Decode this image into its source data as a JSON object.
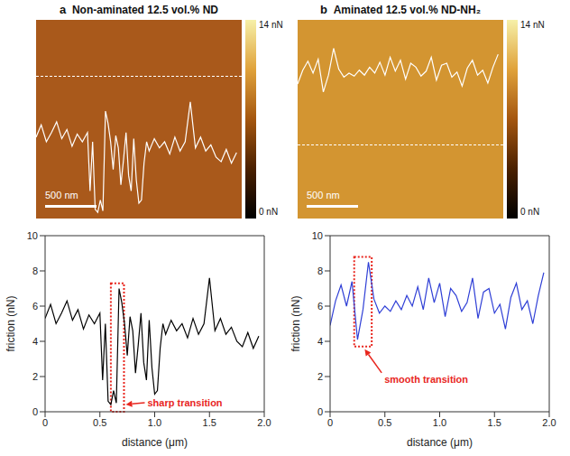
{
  "chart_data": [
    {
      "type": "heatmap",
      "panel": "a",
      "title": "Non-aminated 12.5 vol.% ND",
      "scale_bar": "500 nm",
      "colorbar": {
        "range": [
          0,
          14
        ],
        "ticks": [
          {
            "value": 14,
            "label": "14 nN"
          },
          {
            "value": 0,
            "label": "0 nN"
          }
        ]
      }
    },
    {
      "type": "heatmap",
      "panel": "b",
      "title": "Aminated 12.5 vol.% ND-NH₂",
      "scale_bar": "500 nm",
      "colorbar": {
        "range": [
          0,
          14
        ],
        "ticks": [
          {
            "value": 14,
            "label": "14 nN"
          },
          {
            "value": 0,
            "label": "0 nN"
          }
        ]
      }
    },
    {
      "type": "line",
      "color": "#000000",
      "x_label": "distance (μm)",
      "y_label": "friction (nN)",
      "x": [
        0,
        0.05,
        0.1,
        0.15,
        0.2,
        0.25,
        0.3,
        0.35,
        0.4,
        0.45,
        0.5,
        0.525,
        0.55,
        0.575,
        0.6,
        0.625,
        0.65,
        0.675,
        0.7,
        0.725,
        0.75,
        0.775,
        0.8,
        0.825,
        0.85,
        0.875,
        0.9,
        0.925,
        0.95,
        0.975,
        1.0,
        1.025,
        1.05,
        1.075,
        1.1,
        1.15,
        1.2,
        1.25,
        1.3,
        1.35,
        1.4,
        1.45,
        1.5,
        1.55,
        1.6,
        1.65,
        1.7,
        1.75,
        1.8,
        1.85,
        1.9,
        1.95
      ],
      "values": [
        5.3,
        6.1,
        5.0,
        5.6,
        6.3,
        5.2,
        5.8,
        4.7,
        5.5,
        5.0,
        5.6,
        1.8,
        5.0,
        0.6,
        0.4,
        1.2,
        0.5,
        7.0,
        6.2,
        5.0,
        3.2,
        5.4,
        4.6,
        2.2,
        3.8,
        5.6,
        2.8,
        1.8,
        5.2,
        2.5,
        1.0,
        1.2,
        3.6,
        5.0,
        4.4,
        5.2,
        4.6,
        5.0,
        4.2,
        5.3,
        4.4,
        5.0,
        7.6,
        4.6,
        5.3,
        4.4,
        4.8,
        4.0,
        3.7,
        4.5,
        3.6,
        4.3
      ],
      "xlim": [
        0,
        2
      ],
      "xticks": [
        0,
        0.5,
        {
          "value": 1,
          "label": "1.0"
        },
        1.5,
        {
          "value": 2,
          "label": "2.0"
        }
      ],
      "ylim": [
        0,
        10
      ],
      "yticks": [
        0,
        2,
        4,
        6,
        8,
        10
      ],
      "annotation": {
        "text": "sharp transition",
        "x": [
          0.6,
          0.72
        ],
        "y": [
          0,
          7.3
        ],
        "color": "#e8261e"
      }
    },
    {
      "type": "line",
      "color": "#2f3fd6",
      "x_label": "distance (μm)",
      "y_label": "friction (nN)",
      "x": [
        0,
        0.05,
        0.1,
        0.15,
        0.2,
        0.25,
        0.3,
        0.35,
        0.4,
        0.45,
        0.5,
        0.55,
        0.6,
        0.65,
        0.7,
        0.75,
        0.8,
        0.85,
        0.9,
        0.95,
        1.0,
        1.05,
        1.1,
        1.15,
        1.2,
        1.25,
        1.3,
        1.35,
        1.4,
        1.45,
        1.5,
        1.55,
        1.6,
        1.65,
        1.7,
        1.75,
        1.8,
        1.85,
        1.9,
        1.95
      ],
      "values": [
        4.9,
        6.3,
        7.2,
        6.0,
        7.4,
        4.1,
        5.8,
        8.5,
        6.4,
        5.6,
        6.0,
        5.7,
        6.3,
        5.8,
        6.6,
        6.0,
        7.1,
        5.8,
        7.6,
        6.2,
        7.3,
        5.4,
        7.0,
        6.6,
        5.7,
        6.2,
        7.6,
        5.3,
        6.8,
        7.0,
        5.6,
        6.1,
        4.7,
        6.5,
        7.3,
        5.8,
        6.3,
        5.0,
        6.6,
        7.9
      ],
      "xlim": [
        0,
        2
      ],
      "xticks": [
        0,
        0.5,
        {
          "value": 1,
          "label": "1.0"
        },
        1.5,
        {
          "value": 2,
          "label": "2.0"
        }
      ],
      "ylim": [
        0,
        10
      ],
      "yticks": [
        0,
        2,
        4,
        6,
        8,
        10
      ],
      "annotation": {
        "text": "smooth transition",
        "x": [
          0.22,
          0.38
        ],
        "y": [
          3.7,
          8.8
        ],
        "color": "#e8261e"
      }
    }
  ]
}
